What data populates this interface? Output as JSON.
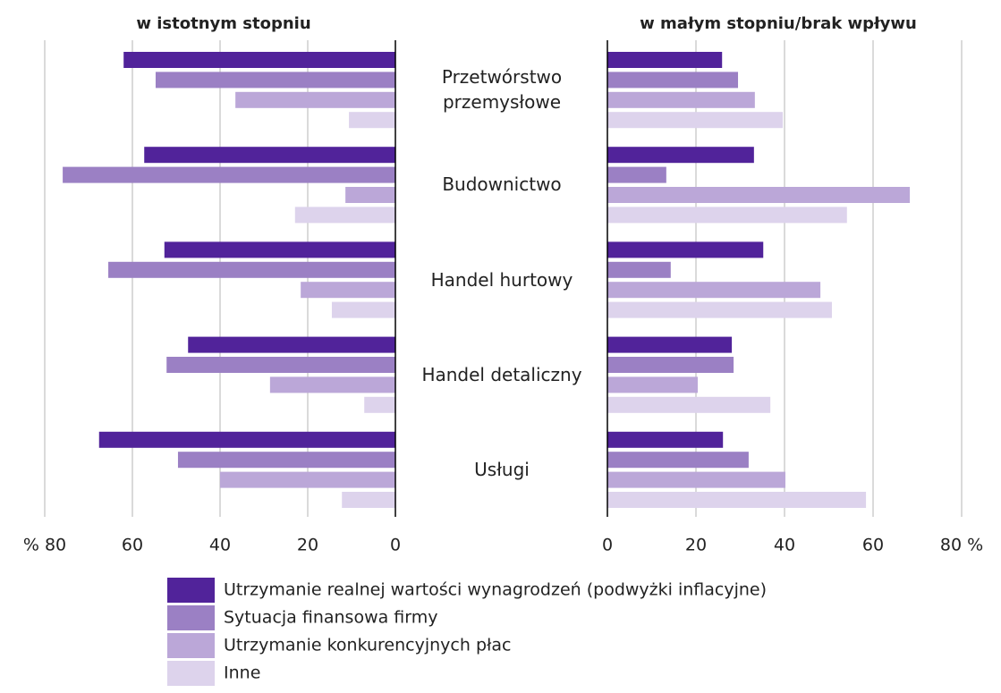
{
  "chart_data": [
    {
      "type": "bar",
      "orientation": "horizontal",
      "direction": "reversed",
      "title": "w istotnym stopniu",
      "categories": [
        "Przetwórstwo przemysłowe",
        "Budownictwo",
        "Handel hurtowy",
        "Handel detaliczny",
        "Usługi"
      ],
      "series": [
        {
          "name": "Utrzymanie realnej wartości wynagrodzeń (podwyżki inflacyjne)",
          "color": "#51239a",
          "values": [
            62.0,
            57.3,
            52.7,
            47.3,
            67.6
          ]
        },
        {
          "name": "Sytuacja finansowa firmy",
          "color": "#9b80c4",
          "values": [
            54.7,
            75.9,
            65.5,
            52.2,
            49.6
          ]
        },
        {
          "name": "Utrzymanie konkurencyjnych płac",
          "color": "#bba7d8",
          "values": [
            36.5,
            11.4,
            21.6,
            28.6,
            40.0
          ]
        },
        {
          "name": "Inne",
          "color": "#ddd3ec",
          "values": [
            10.6,
            22.9,
            14.5,
            7.1,
            12.2
          ]
        }
      ],
      "xlim": [
        0,
        80
      ],
      "xticks": [
        {
          "value": 80,
          "label": "% 80"
        },
        60,
        40,
        20,
        0
      ],
      "grid": true
    },
    {
      "type": "bar",
      "orientation": "horizontal",
      "title": "w małym stopniu/brak wpływu",
      "series": [
        {
          "values": [
            25.9,
            33.1,
            35.2,
            28.1,
            26.1
          ]
        },
        {
          "values": [
            29.5,
            13.3,
            14.3,
            28.5,
            31.9
          ]
        },
        {
          "values": [
            33.3,
            68.3,
            48.1,
            20.4,
            40.2
          ]
        },
        {
          "values": [
            39.6,
            54.1,
            50.7,
            36.8,
            58.4
          ]
        }
      ],
      "xlim": [
        0,
        80
      ],
      "xticks": [
        0,
        20,
        40,
        60,
        {
          "value": 80,
          "label": "80 %"
        }
      ],
      "grid": true
    }
  ]
}
